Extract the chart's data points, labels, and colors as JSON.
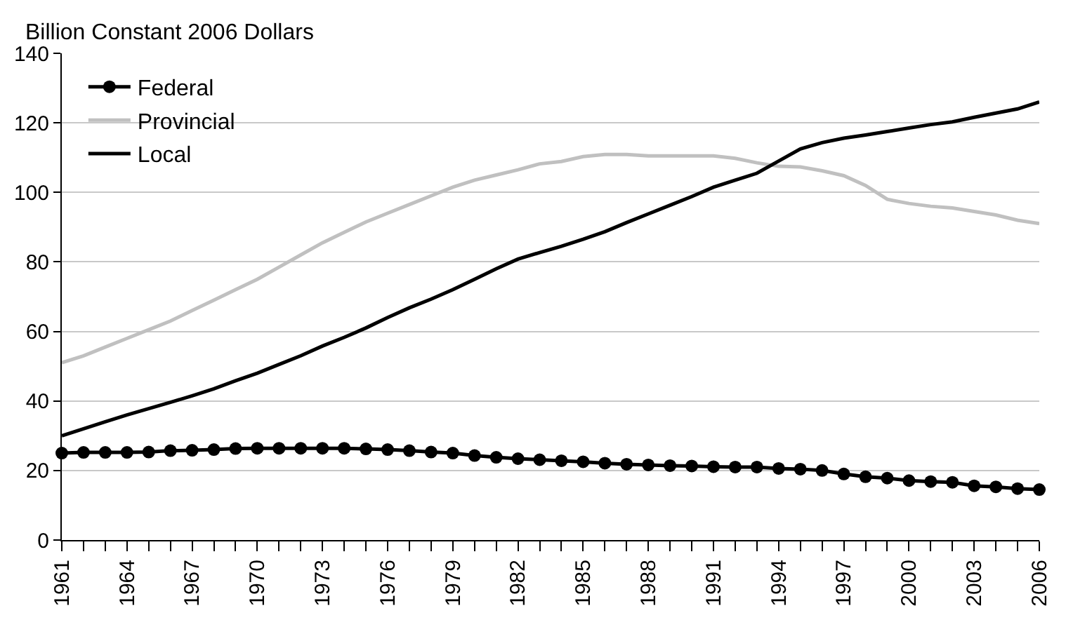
{
  "chart_data": {
    "type": "line",
    "ylabel": "Billion Constant 2006 Dollars",
    "categories": [
      "1961",
      null,
      null,
      "1964",
      null,
      null,
      "1967",
      null,
      null,
      "1970",
      null,
      null,
      "1973",
      null,
      null,
      "1976",
      null,
      null,
      "1979",
      null,
      null,
      "1982",
      null,
      null,
      "1985",
      null,
      null,
      "1988",
      null,
      null,
      "1991",
      null,
      null,
      "1994",
      null,
      null,
      "1997",
      null,
      null,
      "2000",
      null,
      null,
      "2003",
      null,
      null,
      "2006"
    ],
    "series": [
      {
        "name": "Federal",
        "color": "#000000",
        "marker": "circle",
        "values": [
          25,
          25.2,
          25.2,
          25.2,
          25.3,
          25.7,
          25.8,
          26,
          26.3,
          26.4,
          26.4,
          26.4,
          26.4,
          26.4,
          26.2,
          26,
          25.7,
          25.3,
          25,
          24.3,
          23.8,
          23.4,
          23.1,
          22.8,
          22.5,
          22.1,
          21.8,
          21.6,
          21.4,
          21.3,
          21.1,
          21,
          21,
          20.6,
          20.4,
          20,
          19,
          18.2,
          17.8,
          17.1,
          16.8,
          16.6,
          15.6,
          15.3,
          14.8,
          14.5
        ]
      },
      {
        "name": "Provincial",
        "color": "#c0c0c0",
        "values": [
          51,
          53,
          55.5,
          58,
          60.5,
          63,
          66,
          69,
          72,
          75,
          78.5,
          82,
          85.5,
          88.5,
          91.5,
          94,
          96.5,
          99,
          101.5,
          103.5,
          105,
          106.5,
          108.2,
          108.9,
          110.3,
          110.9,
          110.9,
          110.5,
          110.5,
          110.5,
          110.5,
          109.8,
          108.5,
          107.5,
          107.3,
          106.2,
          104.8,
          102,
          98,
          96.8,
          96,
          95.5,
          94.5,
          93.5,
          92,
          91
        ]
      },
      {
        "name": "Local",
        "color": "#000000",
        "values": [
          30,
          32,
          34,
          36,
          37.8,
          39.6,
          41.5,
          43.5,
          45.8,
          48,
          50.5,
          53,
          55.8,
          58.3,
          61,
          64,
          66.8,
          69.3,
          72,
          75,
          78,
          80.8,
          82.7,
          84.5,
          86.5,
          88.7,
          91.3,
          93.8,
          96.3,
          98.8,
          101.5,
          103.5,
          105.5,
          109,
          112.5,
          114.3,
          115.6,
          116.5,
          117.5,
          118.5,
          119.5,
          120.3,
          121.6,
          122.8,
          124,
          126
        ]
      }
    ],
    "ylim": [
      0,
      140
    ],
    "yticks": [
      0,
      20,
      40,
      60,
      80,
      100,
      120,
      140
    ],
    "grid": "y",
    "legend": "top left",
    "line_style": "solid"
  }
}
